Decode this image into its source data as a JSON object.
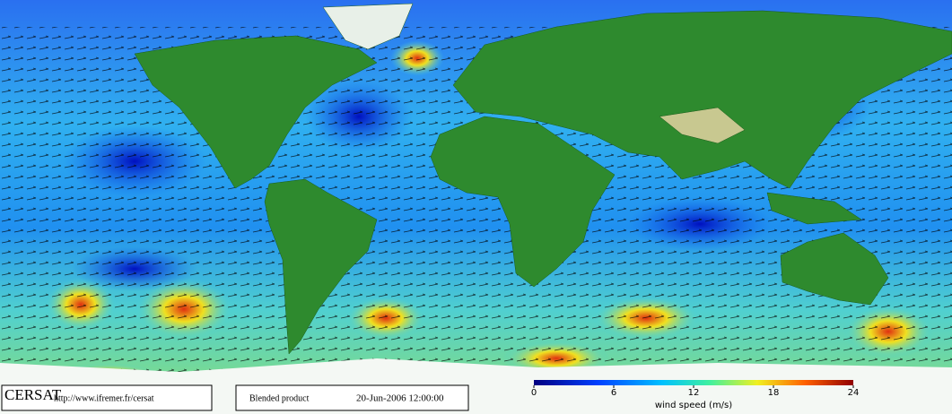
{
  "header": {
    "logo": "CERSAT",
    "url": "http://www.ifremer.fr/cersat"
  },
  "product": {
    "name": "Blended product",
    "date": "20-Jun-2006 12:00:00"
  },
  "colorbar": {
    "label": "wind speed (m/s)",
    "lim": [
      0,
      24
    ],
    "ticks": [
      0,
      6,
      12,
      18,
      24
    ]
  }
}
